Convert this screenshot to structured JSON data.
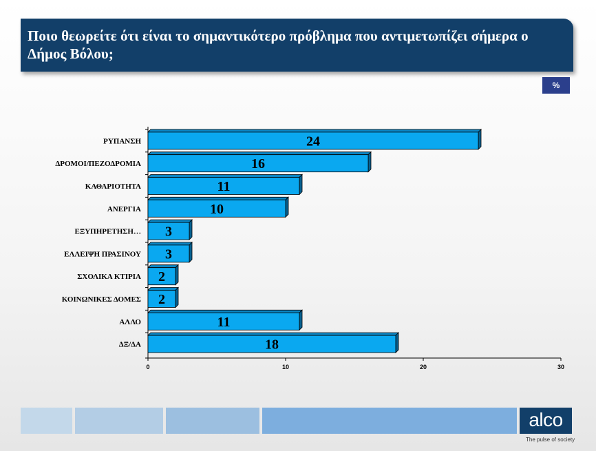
{
  "header": {
    "title": "Ποιο θεωρείτε ότι είναι το σημαντικότερο πρόβλημα που αντιμετωπίζει σήμερα ο Δήμος Βόλου;",
    "unit_badge": "%"
  },
  "brand": {
    "logo_text": "alco",
    "tagline": "The pulse of society"
  },
  "colors": {
    "title_bg": "#123f69",
    "bar_fill": "#0aa8f0",
    "badge_bg": "#2b3f8c"
  },
  "chart_data": {
    "type": "bar",
    "orientation": "horizontal",
    "categories": [
      "ΡΥΠΑΝΣΗ",
      "ΔΡΟΜΟΙ/ΠΕΖΟΔΡΟΜΙΑ",
      "ΚΑΘΑΡΙΟΤΗΤΑ",
      "ΑΝΕΡΓΙΑ",
      "ΕΞΥΠΗΡΕΤΗΣΗ…",
      "ΕΛΛΕΙΨΗ ΠΡΑΣΙΝΟΥ",
      "ΣΧΟΛΙΚΑ ΚΤΙΡΙΑ",
      "ΚΟΙΝΩΝΙΚΕΣ ΔΟΜΕΣ",
      "ΑΛΛΟ",
      "ΔΞ/ΔΑ"
    ],
    "values": [
      24,
      16,
      11,
      10,
      3,
      3,
      2,
      2,
      11,
      18
    ],
    "data_labels": [
      "24",
      "16",
      "11",
      "10",
      "3",
      "3",
      "2",
      "2",
      "11",
      "18"
    ],
    "xlim": [
      0,
      30
    ],
    "x_ticks": [
      0,
      10,
      20,
      30
    ],
    "x_tick_labels": [
      "0",
      "10",
      "20",
      "30"
    ],
    "grid": false,
    "legend": "none",
    "title": "",
    "xlabel": "",
    "ylabel": ""
  }
}
